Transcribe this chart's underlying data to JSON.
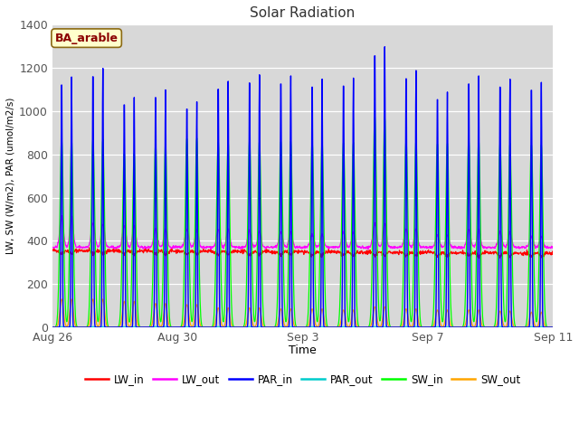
{
  "title": "Solar Radiation",
  "xlabel": "Time",
  "ylabel": "LW, SW (W/m2), PAR (umol/m2/s)",
  "ylim": [
    0,
    1400
  ],
  "yticks": [
    0,
    200,
    400,
    600,
    800,
    1000,
    1200,
    1400
  ],
  "annotation_text": "BA_arable",
  "annotation_bg": "#ffffcc",
  "annotation_border": "#8b0000",
  "fig_bg": "#ffffff",
  "plot_bg": "#d8d8d8",
  "series_colors": {
    "LW_in": "#ff0000",
    "LW_out": "#ff00ff",
    "PAR_in": "#0000ff",
    "PAR_out": "#00cccc",
    "SW_in": "#00ff00",
    "SW_out": "#ffa500"
  },
  "xtick_labels": [
    "Aug 26",
    "Aug 30",
    "Sep 3",
    "Sep 7",
    "Sep 11"
  ],
  "xtick_days": [
    0,
    4,
    8,
    12,
    16
  ],
  "n_days": 17,
  "pts_per_day": 96
}
